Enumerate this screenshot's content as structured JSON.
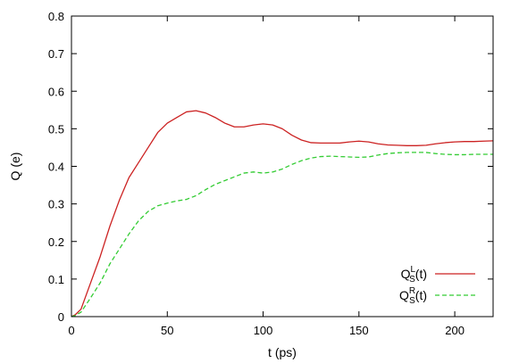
{
  "chart_data": {
    "type": "line",
    "xlabel": "t (ps)",
    "ylabel": "Q (e)",
    "xlim": [
      0,
      220
    ],
    "ylim": [
      0,
      0.8
    ],
    "xticks": [
      "0",
      "50",
      "100",
      "150",
      "200"
    ],
    "xtick_values": [
      0,
      50,
      100,
      150,
      200
    ],
    "yticks": [
      "0",
      "0.1",
      "0.2",
      "0.3",
      "0.4",
      "0.5",
      "0.6",
      "0.7",
      "0.8"
    ],
    "ytick_values": [
      0,
      0.1,
      0.2,
      0.3,
      0.4,
      0.5,
      0.6,
      0.7,
      0.8
    ],
    "grid": false,
    "legend_position": "bottom-right",
    "series": [
      {
        "name": "Q",
        "name_superscript": "L",
        "name_subscript": "S",
        "name_suffix": "(t)",
        "color": "#cc2222",
        "dash": "solid",
        "x": [
          0,
          2,
          5,
          10,
          15,
          20,
          25,
          30,
          35,
          40,
          45,
          50,
          55,
          60,
          65,
          70,
          75,
          80,
          85,
          90,
          95,
          100,
          105,
          110,
          115,
          120,
          125,
          130,
          135,
          140,
          145,
          150,
          155,
          160,
          165,
          170,
          175,
          180,
          185,
          190,
          195,
          200,
          205,
          210,
          215,
          220
        ],
        "y": [
          0,
          0.005,
          0.02,
          0.09,
          0.16,
          0.24,
          0.31,
          0.37,
          0.41,
          0.45,
          0.49,
          0.515,
          0.53,
          0.545,
          0.548,
          0.542,
          0.53,
          0.515,
          0.505,
          0.505,
          0.51,
          0.513,
          0.51,
          0.5,
          0.483,
          0.47,
          0.463,
          0.462,
          0.462,
          0.462,
          0.465,
          0.467,
          0.465,
          0.46,
          0.457,
          0.456,
          0.455,
          0.455,
          0.456,
          0.46,
          0.463,
          0.465,
          0.466,
          0.466,
          0.467,
          0.468
        ]
      },
      {
        "name": "Q",
        "name_superscript": "R",
        "name_subscript": "S",
        "name_suffix": "(t)",
        "color": "#33cc33",
        "dash": "dashed",
        "x": [
          0,
          2,
          5,
          10,
          15,
          20,
          25,
          30,
          35,
          40,
          45,
          50,
          55,
          60,
          65,
          70,
          75,
          80,
          85,
          90,
          95,
          100,
          105,
          110,
          115,
          120,
          125,
          130,
          135,
          140,
          145,
          150,
          155,
          160,
          165,
          170,
          175,
          180,
          185,
          190,
          195,
          200,
          205,
          210,
          215,
          220
        ],
        "y": [
          0,
          0.003,
          0.012,
          0.05,
          0.09,
          0.14,
          0.18,
          0.22,
          0.255,
          0.28,
          0.295,
          0.302,
          0.308,
          0.312,
          0.322,
          0.338,
          0.352,
          0.362,
          0.372,
          0.382,
          0.385,
          0.382,
          0.385,
          0.393,
          0.405,
          0.415,
          0.422,
          0.426,
          0.427,
          0.426,
          0.425,
          0.424,
          0.425,
          0.43,
          0.434,
          0.436,
          0.437,
          0.437,
          0.437,
          0.434,
          0.432,
          0.431,
          0.431,
          0.432,
          0.432,
          0.432
        ]
      }
    ]
  }
}
